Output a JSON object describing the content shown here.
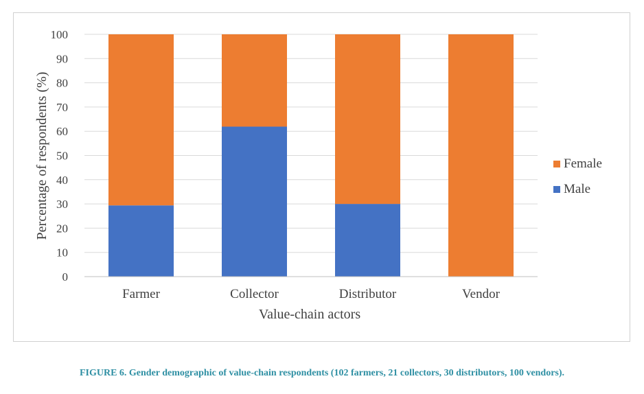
{
  "chart_data": {
    "type": "bar",
    "stacked": true,
    "categories": [
      "Farmer",
      "Collector",
      "Distributor",
      "Vendor"
    ],
    "series": [
      {
        "name": "Male",
        "color": "#4472c4",
        "values": [
          29.4,
          61.9,
          30.0,
          0
        ]
      },
      {
        "name": "Female",
        "color": "#ed7d31",
        "values": [
          70.6,
          38.1,
          70.0,
          100
        ]
      }
    ],
    "xlabel": "Value-chain actors",
    "ylabel": "Percentage of respondents (%)",
    "ylim": [
      0,
      100
    ],
    "yticks": [
      "0",
      "10",
      "20",
      "30",
      "40",
      "50",
      "60",
      "70",
      "80",
      "90",
      "100"
    ],
    "grid": true,
    "legend_position": "right",
    "legend_order": [
      "Female",
      "Male"
    ]
  },
  "caption": "FIGURE 6. Gender demographic of value-chain respondents (102 farmers, 21 collectors, 30 distributors, 100 vendors)."
}
